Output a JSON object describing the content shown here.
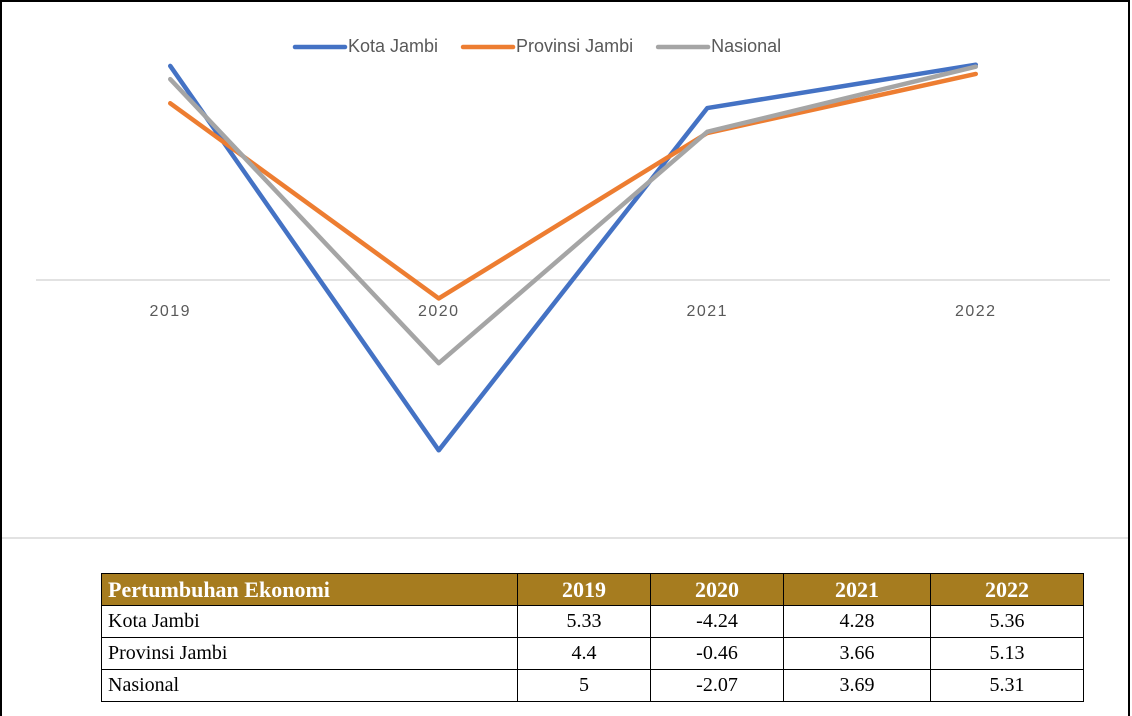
{
  "chart_data": {
    "type": "line",
    "categories": [
      "2019",
      "2020",
      "2021",
      "2022"
    ],
    "series": [
      {
        "name": "Kota Jambi",
        "color": "#4472c4",
        "values": [
          5.33,
          -4.24,
          4.28,
          5.36
        ]
      },
      {
        "name": "Provinsi Jambi",
        "color": "#ed7d31",
        "values": [
          4.4,
          -0.46,
          3.66,
          5.13
        ]
      },
      {
        "name": "Nasional",
        "color": "#a5a5a5",
        "values": [
          5,
          -2.07,
          3.69,
          5.31
        ]
      }
    ],
    "ylim": [
      -6,
      6
    ],
    "legend": "top"
  },
  "table": {
    "header": "Pertumbuhan Ekonomi"
  }
}
